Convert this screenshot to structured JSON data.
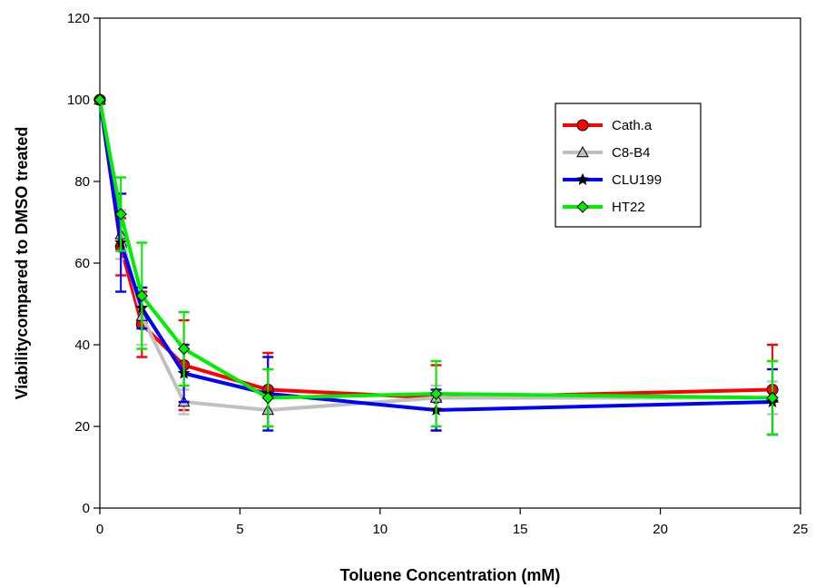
{
  "chart_data": {
    "type": "line",
    "title": "",
    "xlabel": "Toluene Concentration (mM)",
    "ylabel": "Viabilitycompared to DMSO treated",
    "xlim": [
      0,
      25
    ],
    "ylim": [
      0,
      120
    ],
    "xticks": [
      0,
      5,
      10,
      15,
      20,
      25
    ],
    "yticks": [
      0,
      20,
      40,
      60,
      80,
      100,
      120
    ],
    "grid": false,
    "legend_position": "top-right",
    "x": [
      0,
      0.75,
      1.5,
      3,
      6,
      12,
      24
    ],
    "series": [
      {
        "name": "Cath.a",
        "color": "#ff0000",
        "marker": "circle",
        "values": [
          100,
          64,
          45,
          35,
          29,
          27,
          29
        ],
        "errors": [
          0,
          7,
          8,
          11,
          9,
          8,
          11
        ]
      },
      {
        "name": "C8-B4",
        "color": "#c0c0c0",
        "marker": "triangle",
        "values": [
          100,
          67,
          47,
          26,
          24,
          27,
          27
        ],
        "errors": [
          0,
          6,
          7,
          3,
          4,
          3,
          4
        ]
      },
      {
        "name": "CLU199",
        "color": "#0000ff",
        "marker": "star",
        "values": [
          100,
          65,
          49,
          33,
          28,
          24,
          26
        ],
        "errors": [
          0,
          12,
          5,
          7,
          9,
          5,
          8
        ]
      },
      {
        "name": "HT22",
        "color": "#00ee00",
        "marker": "diamond",
        "values": [
          100,
          72,
          52,
          39,
          27,
          28,
          27
        ],
        "errors": [
          0,
          9,
          13,
          9,
          7,
          8,
          9
        ]
      }
    ]
  }
}
